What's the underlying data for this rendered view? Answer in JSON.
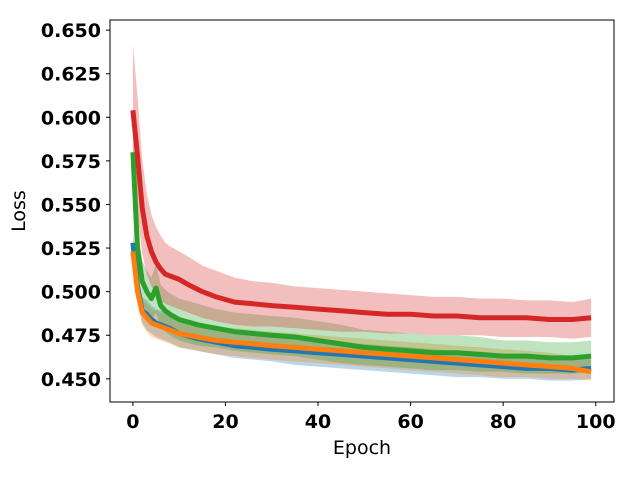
{
  "chart_data": {
    "type": "line",
    "title": "",
    "xlabel": "Epoch",
    "ylabel": "Loss",
    "xlim": [
      -4.95,
      103.95
    ],
    "ylim": [
      0.4367,
      0.6558
    ],
    "xticks": [
      0,
      20,
      40,
      60,
      80,
      100
    ],
    "xtick_labels": [
      "0",
      "20",
      "40",
      "60",
      "80",
      "100"
    ],
    "yticks": [
      0.45,
      0.475,
      0.5,
      0.525,
      0.55,
      0.575,
      0.6,
      0.625,
      0.65
    ],
    "ytick_labels": [
      "0.450",
      "0.475",
      "0.500",
      "0.525",
      "0.550",
      "0.575",
      "0.600",
      "0.625",
      "0.650"
    ],
    "grid": false,
    "legend": "none",
    "series": [
      {
        "color": "#1f77b4",
        "x": [
          0,
          1,
          2,
          3,
          4,
          5,
          6,
          8,
          10,
          14,
          18,
          22,
          26,
          30,
          35,
          40,
          45,
          50,
          55,
          60,
          65,
          70,
          75,
          80,
          85,
          90,
          95,
          99
        ],
        "y": [
          0.528,
          0.503,
          0.489,
          0.487,
          0.484,
          0.482,
          0.481,
          0.479,
          0.476,
          0.473,
          0.471,
          0.469,
          0.468,
          0.467,
          0.466,
          0.465,
          0.464,
          0.463,
          0.462,
          0.461,
          0.46,
          0.459,
          0.458,
          0.457,
          0.456,
          0.456,
          0.455,
          0.456
        ],
        "band_lower": [
          0.522,
          0.496,
          0.482,
          0.478,
          0.476,
          0.474,
          0.473,
          0.471,
          0.468,
          0.466,
          0.464,
          0.462,
          0.461,
          0.46,
          0.458,
          0.457,
          0.456,
          0.455,
          0.454,
          0.453,
          0.452,
          0.451,
          0.451,
          0.45,
          0.45,
          0.449,
          0.449,
          0.45
        ],
        "band_upper": [
          0.535,
          0.51,
          0.497,
          0.495,
          0.492,
          0.49,
          0.489,
          0.487,
          0.484,
          0.481,
          0.479,
          0.477,
          0.476,
          0.474,
          0.473,
          0.472,
          0.471,
          0.47,
          0.469,
          0.468,
          0.467,
          0.466,
          0.465,
          0.464,
          0.463,
          0.462,
          0.461,
          0.462
        ]
      },
      {
        "color": "#ff7f0e",
        "x": [
          0,
          1,
          2,
          3,
          4,
          5,
          6,
          8,
          10,
          14,
          18,
          22,
          26,
          30,
          35,
          40,
          45,
          50,
          55,
          60,
          65,
          70,
          75,
          80,
          85,
          90,
          95,
          99
        ],
        "y": [
          0.523,
          0.5,
          0.488,
          0.485,
          0.482,
          0.481,
          0.48,
          0.478,
          0.476,
          0.474,
          0.472,
          0.471,
          0.47,
          0.469,
          0.468,
          0.467,
          0.466,
          0.465,
          0.464,
          0.463,
          0.462,
          0.461,
          0.46,
          0.459,
          0.458,
          0.457,
          0.456,
          0.454
        ],
        "band_lower": [
          0.517,
          0.493,
          0.481,
          0.477,
          0.474,
          0.473,
          0.472,
          0.47,
          0.468,
          0.466,
          0.464,
          0.463,
          0.462,
          0.461,
          0.46,
          0.459,
          0.458,
          0.457,
          0.456,
          0.455,
          0.454,
          0.453,
          0.452,
          0.451,
          0.451,
          0.45,
          0.45,
          0.449
        ],
        "band_upper": [
          0.53,
          0.507,
          0.495,
          0.493,
          0.49,
          0.489,
          0.488,
          0.486,
          0.484,
          0.482,
          0.48,
          0.479,
          0.478,
          0.477,
          0.476,
          0.475,
          0.474,
          0.473,
          0.472,
          0.471,
          0.47,
          0.469,
          0.468,
          0.467,
          0.466,
          0.465,
          0.463,
          0.461
        ]
      },
      {
        "color": "#2ca02c",
        "x": [
          0,
          1,
          2,
          3,
          4,
          5,
          6,
          7,
          8,
          10,
          14,
          18,
          22,
          26,
          30,
          35,
          40,
          45,
          50,
          55,
          60,
          65,
          70,
          75,
          80,
          85,
          90,
          95,
          99
        ],
        "y": [
          0.58,
          0.525,
          0.506,
          0.5,
          0.496,
          0.502,
          0.492,
          0.489,
          0.487,
          0.484,
          0.481,
          0.479,
          0.477,
          0.476,
          0.475,
          0.474,
          0.472,
          0.47,
          0.468,
          0.467,
          0.466,
          0.465,
          0.465,
          0.464,
          0.463,
          0.463,
          0.462,
          0.462,
          0.463
        ],
        "band_lower": [
          0.572,
          0.512,
          0.494,
          0.488,
          0.484,
          0.488,
          0.48,
          0.477,
          0.475,
          0.472,
          0.469,
          0.468,
          0.466,
          0.465,
          0.464,
          0.463,
          0.461,
          0.459,
          0.458,
          0.457,
          0.456,
          0.455,
          0.455,
          0.454,
          0.454,
          0.453,
          0.453,
          0.453,
          0.454
        ],
        "band_upper": [
          0.588,
          0.538,
          0.518,
          0.512,
          0.508,
          0.516,
          0.504,
          0.501,
          0.499,
          0.496,
          0.493,
          0.49,
          0.488,
          0.487,
          0.486,
          0.485,
          0.483,
          0.481,
          0.478,
          0.477,
          0.476,
          0.475,
          0.475,
          0.474,
          0.472,
          0.472,
          0.471,
          0.471,
          0.472
        ]
      },
      {
        "color": "#d62728",
        "x": [
          0,
          1,
          2,
          3,
          4,
          5,
          6,
          7,
          8,
          10,
          12,
          15,
          18,
          22,
          26,
          30,
          35,
          40,
          45,
          50,
          55,
          60,
          65,
          70,
          75,
          80,
          85,
          90,
          95,
          99
        ],
        "y": [
          0.604,
          0.578,
          0.548,
          0.532,
          0.523,
          0.517,
          0.513,
          0.51,
          0.509,
          0.507,
          0.504,
          0.5,
          0.497,
          0.494,
          0.493,
          0.492,
          0.491,
          0.49,
          0.489,
          0.488,
          0.487,
          0.487,
          0.486,
          0.486,
          0.485,
          0.485,
          0.485,
          0.484,
          0.484,
          0.485
        ],
        "band_lower": [
          0.568,
          0.545,
          0.522,
          0.51,
          0.503,
          0.498,
          0.495,
          0.493,
          0.492,
          0.49,
          0.488,
          0.485,
          0.483,
          0.481,
          0.48,
          0.48,
          0.479,
          0.478,
          0.477,
          0.477,
          0.476,
          0.476,
          0.475,
          0.475,
          0.475,
          0.474,
          0.474,
          0.474,
          0.473,
          0.474
        ],
        "band_upper": [
          0.642,
          0.612,
          0.576,
          0.556,
          0.544,
          0.537,
          0.532,
          0.528,
          0.526,
          0.523,
          0.52,
          0.515,
          0.512,
          0.508,
          0.506,
          0.505,
          0.503,
          0.502,
          0.501,
          0.5,
          0.499,
          0.498,
          0.497,
          0.497,
          0.496,
          0.496,
          0.495,
          0.495,
          0.494,
          0.496
        ]
      }
    ]
  }
}
